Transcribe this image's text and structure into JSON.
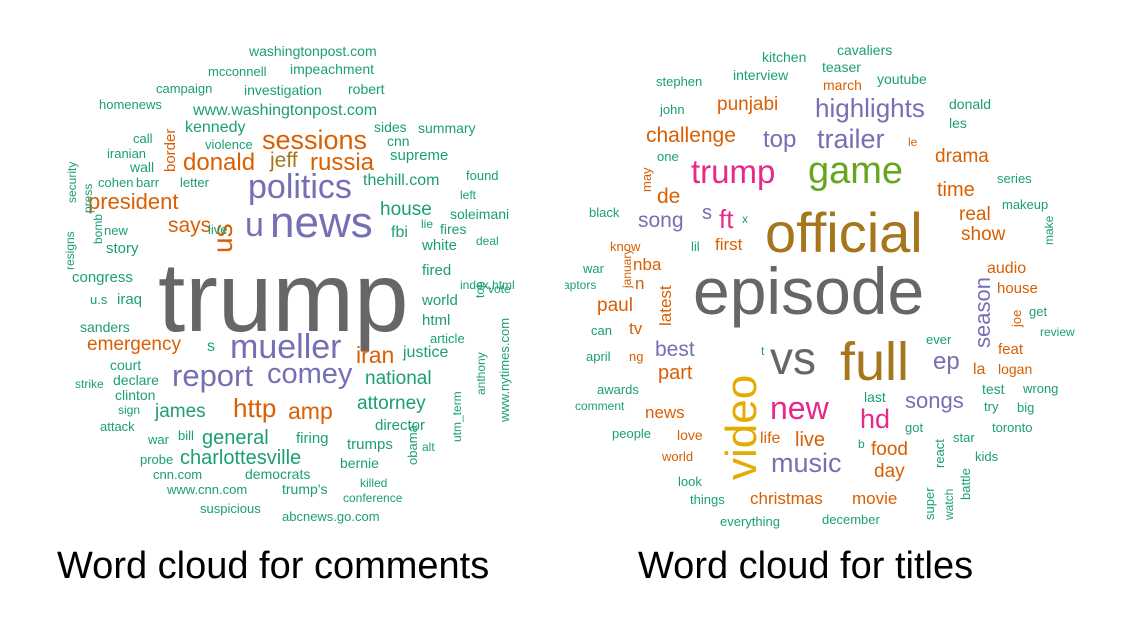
{
  "palette": {
    "gray": "#666666",
    "purple": "#7570b3",
    "orange": "#d95f02",
    "teal": "#1b9e77",
    "gold": "#a6761d",
    "pink": "#e7298a",
    "green": "#66a61e",
    "yellow": "#e6ab02"
  },
  "left_cloud": {
    "caption": "Word cloud for comments",
    "words": [
      "trump",
      "news",
      "u",
      "politics",
      "us",
      "mueller",
      "report",
      "comey",
      "http",
      "amp",
      "sessions",
      "donald",
      "jeff",
      "russia",
      "president",
      "says",
      "house",
      "iran",
      "general",
      "charlottesville",
      "emergency",
      "national",
      "attorney",
      "james",
      "justice",
      "fbi",
      "s",
      "supreme",
      "thehill.com",
      "www.washingtonpost.com",
      "kennedy",
      "white",
      "fired",
      "world",
      "html",
      "article",
      "director",
      "congress",
      "story",
      "iraq",
      "sanders",
      "court",
      "declare",
      "clinton",
      "sign",
      "attack",
      "war",
      "bill",
      "probe",
      "cnn.com",
      "www.cnn.com",
      "democrats",
      "trump's",
      "firing",
      "trumps",
      "bernie",
      "killed",
      "conference",
      "abcnews.go.com",
      "suspicious",
      "obama",
      "alt",
      "anthony",
      "www.nytimes.com",
      "utm_term",
      "vote",
      "deal",
      "index.html",
      "top",
      "soleimani",
      "fires",
      "lie",
      "left",
      "found",
      "summary",
      "sides",
      "cnn",
      "robert",
      "investigation",
      "impeachment",
      "mcconnell",
      "washingtonpost.com",
      "campaign",
      "homenews",
      "border",
      "call",
      "violence",
      "iranian",
      "wall",
      "cohen",
      "barr",
      "letter",
      "security",
      "press",
      "bomb",
      "resigns",
      "new",
      "live",
      "u.s",
      "strike"
    ]
  },
  "right_cloud": {
    "caption": "Word cloud for titles",
    "words": [
      "episode",
      "official",
      "full",
      "vs",
      "video",
      "game",
      "trump",
      "trailer",
      "new",
      "hd",
      "music",
      "top",
      "highlights",
      "ft",
      "s",
      "song",
      "de",
      "challenge",
      "punjabi",
      "drama",
      "time",
      "real",
      "show",
      "season",
      "ep",
      "songs",
      "live",
      "food",
      "day",
      "christmas",
      "movie",
      "news",
      "best",
      "part",
      "paul",
      "nba",
      "n",
      "tv",
      "latest",
      "first",
      "la",
      "audio",
      "house",
      "feat",
      "logan",
      "test",
      "wrong",
      "big",
      "try",
      "toronto",
      "star",
      "kids",
      "react",
      "battle",
      "watch",
      "super",
      "got",
      "b",
      "last",
      "life",
      "love",
      "world",
      "look",
      "things",
      "everything",
      "december",
      "people",
      "comment",
      "awards",
      "april",
      "ng",
      "can",
      "raptors",
      "war",
      "january",
      "know",
      "lil",
      "black",
      "may",
      "one",
      "x",
      "t",
      "le",
      "les",
      "donald",
      "series",
      "makeup",
      "make",
      "get",
      "review",
      "joe",
      "ever",
      "john",
      "stephen",
      "interview",
      "kitchen",
      "march",
      "teaser",
      "cavaliers",
      "youtube"
    ]
  }
}
